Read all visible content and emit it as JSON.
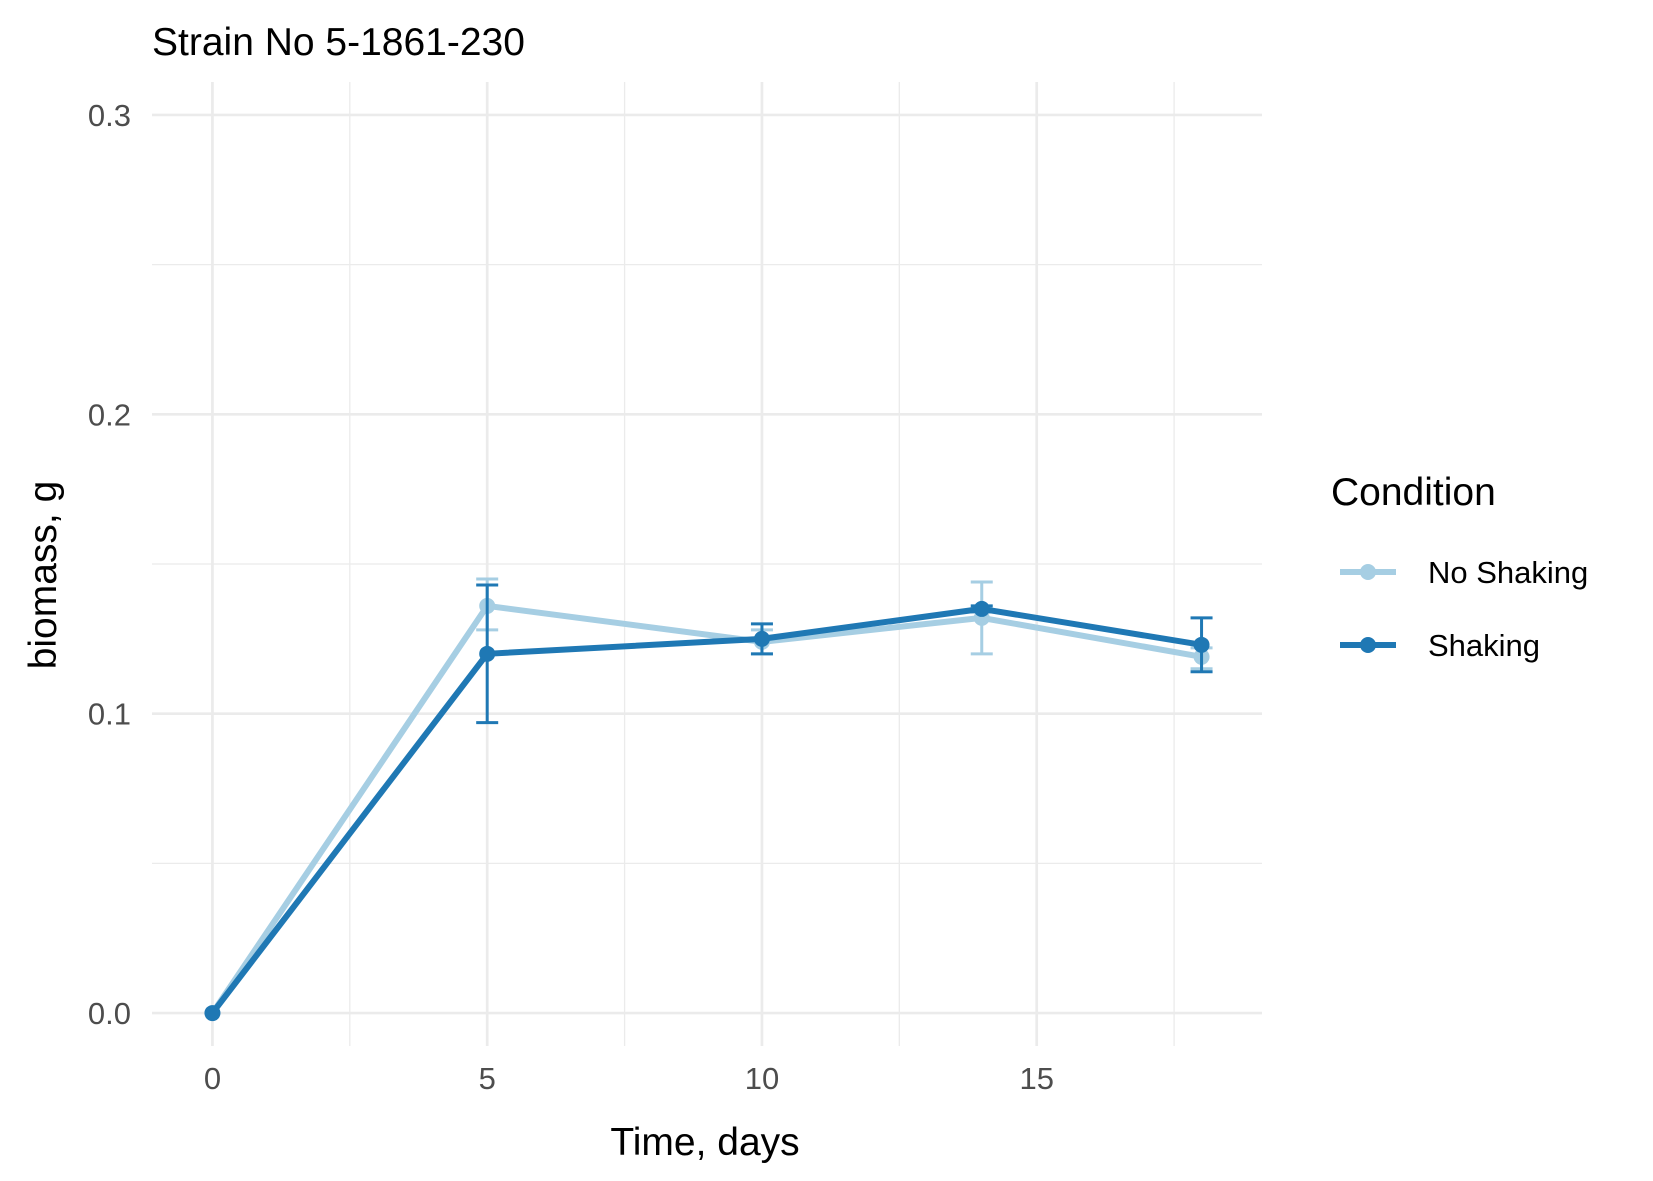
{
  "chart_data": {
    "type": "line",
    "title": "Strain No  5-1861-230",
    "xlabel": "Time, days",
    "ylabel": "biomass, g",
    "xlim": [
      -1.1,
      19.1
    ],
    "ylim": [
      -0.011,
      0.311
    ],
    "x_ticks": [
      0,
      5,
      10,
      15
    ],
    "x_tick_labels": [
      "0",
      "5",
      "10",
      "15"
    ],
    "y_ticks": [
      0.0,
      0.1,
      0.2,
      0.3
    ],
    "y_tick_labels": [
      "0.0",
      "0.1",
      "0.2",
      "0.3"
    ],
    "x_minor_ticks": [
      2.5,
      7.5,
      12.5,
      17.5
    ],
    "y_minor_ticks": [
      0.05,
      0.15,
      0.25
    ],
    "grid": true,
    "legend": {
      "title": "Condition",
      "position": "right"
    },
    "series": [
      {
        "name": "No Shaking",
        "color": "#a6cee3",
        "x": [
          0,
          5,
          10,
          14,
          18
        ],
        "y": [
          0.0,
          0.136,
          0.124,
          0.132,
          0.119
        ],
        "err_low": [
          0.0,
          0.128,
          0.12,
          0.12,
          0.115
        ],
        "err_high": [
          0.0,
          0.145,
          0.128,
          0.144,
          0.122
        ]
      },
      {
        "name": "Shaking",
        "color": "#1f78b4",
        "x": [
          0,
          5,
          10,
          14,
          18
        ],
        "y": [
          0.0,
          0.12,
          0.125,
          0.135,
          0.123
        ],
        "err_low": [
          0.0,
          0.097,
          0.12,
          0.134,
          0.114
        ],
        "err_high": [
          0.0,
          0.143,
          0.13,
          0.136,
          0.132
        ]
      }
    ]
  }
}
